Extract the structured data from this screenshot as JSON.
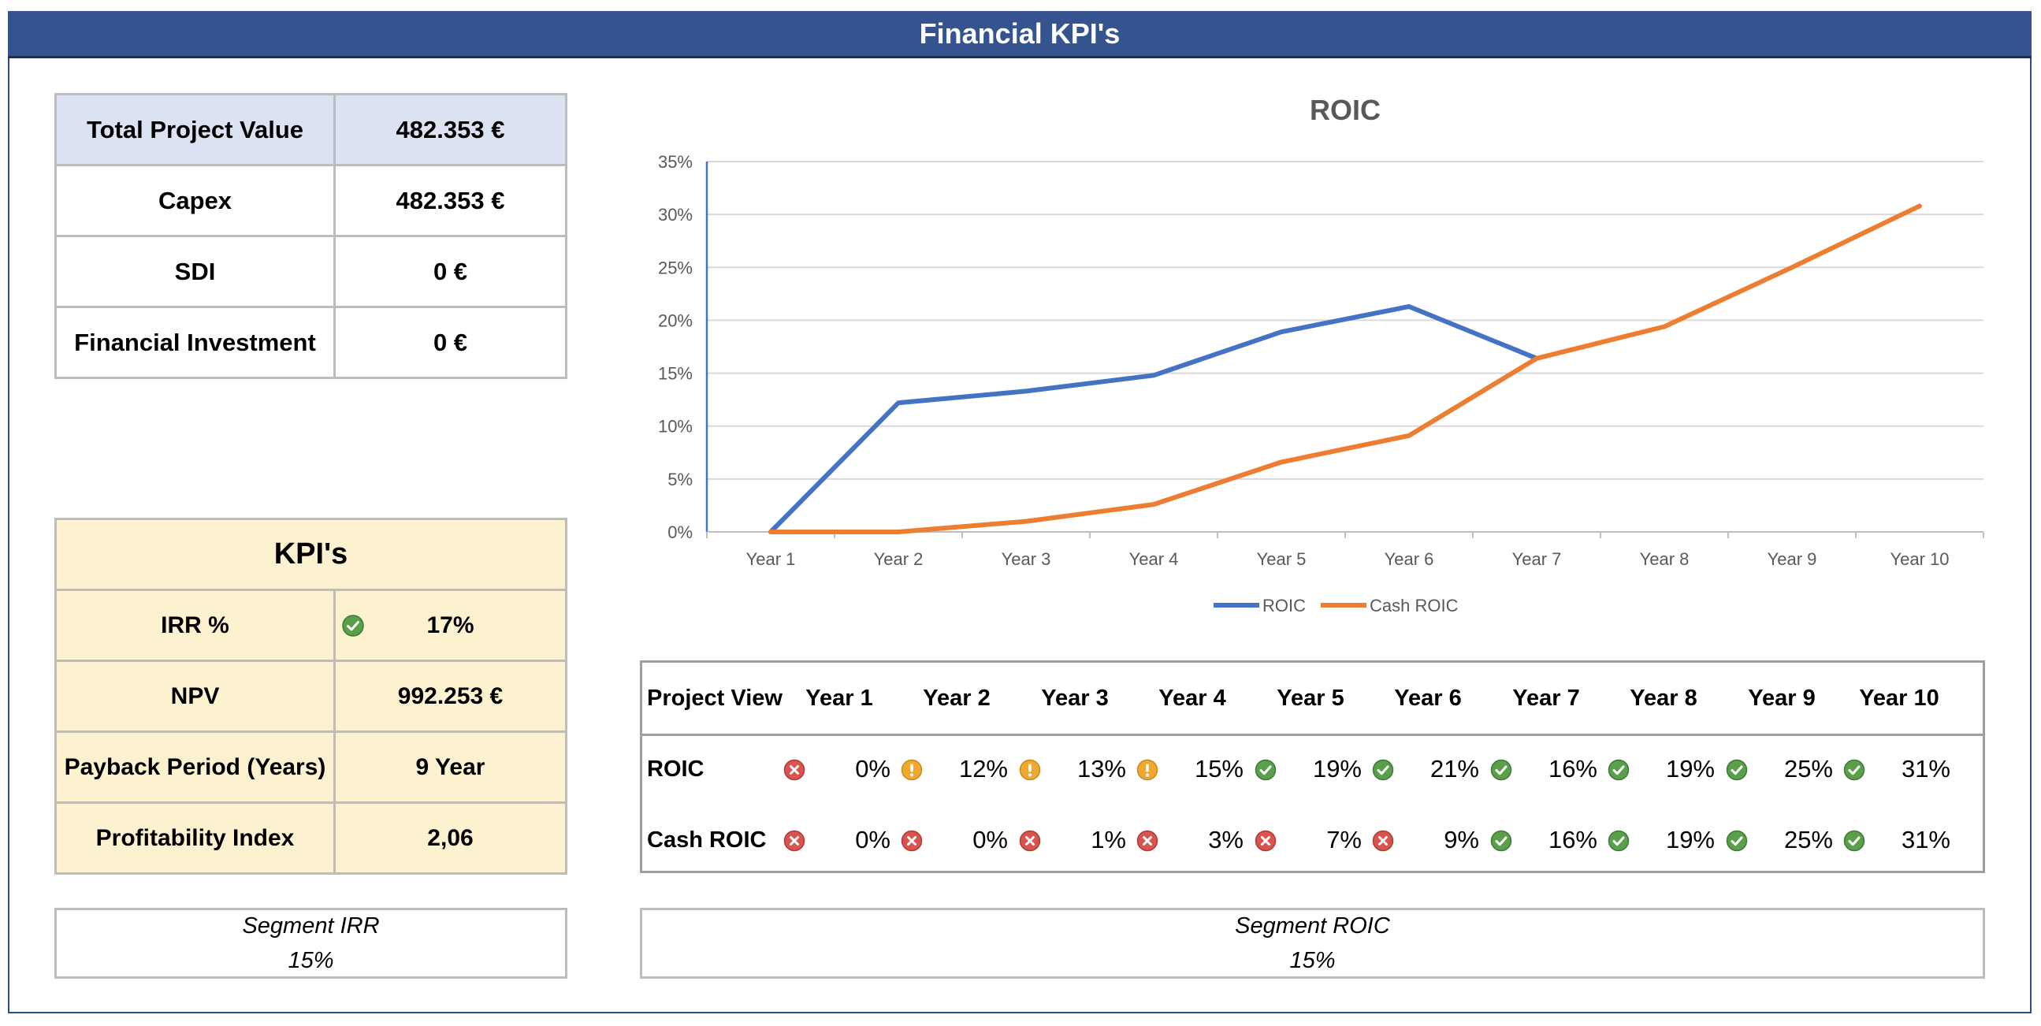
{
  "header": {
    "title": "Financial KPI's"
  },
  "summary": [
    {
      "label": "Total Project Value",
      "value": "482.353 €"
    },
    {
      "label": "Capex",
      "value": "482.353 €"
    },
    {
      "label": "SDI",
      "value": "0 €"
    },
    {
      "label": "Financial Investment",
      "value": "0 €"
    }
  ],
  "kpis": {
    "title": "KPI's",
    "rows": [
      {
        "label": "IRR %",
        "value": "17%",
        "status": "check-icon"
      },
      {
        "label": "NPV",
        "value": "992.253 €"
      },
      {
        "label": "Payback Period (Years)",
        "value": "9 Year"
      },
      {
        "label": "Profitability Index",
        "value": "2,06"
      }
    ]
  },
  "segment_irr": {
    "label": "Segment IRR",
    "value": "15%"
  },
  "segment_roic": {
    "label": "Segment ROIC",
    "value": "15%"
  },
  "chart_data": {
    "type": "line",
    "title": "ROIC",
    "categories": [
      "Year 1",
      "Year 2",
      "Year 3",
      "Year 4",
      "Year 5",
      "Year 6",
      "Year 7",
      "Year 8",
      "Year 9",
      "Year 10"
    ],
    "series": [
      {
        "name": "ROIC",
        "color": "#4472c4",
        "values": [
          0,
          12.2,
          13.3,
          14.8,
          18.9,
          21.3,
          16.4,
          null,
          null,
          null
        ]
      },
      {
        "name": "Cash ROIC",
        "color": "#ed7d31",
        "values": [
          0,
          0,
          1.0,
          2.6,
          6.6,
          9.1,
          16.4,
          19.4,
          25.0,
          30.8
        ]
      }
    ],
    "ylim": [
      0,
      35
    ],
    "yticks": [
      "0%",
      "5%",
      "10%",
      "15%",
      "20%",
      "25%",
      "30%",
      "35%"
    ],
    "grid": true,
    "legend": "bottom"
  },
  "project_view": {
    "header": "Project View",
    "years": [
      "Year 1",
      "Year 2",
      "Year 3",
      "Year 4",
      "Year 5",
      "Year 6",
      "Year 7",
      "Year 8",
      "Year 9",
      "Year 10"
    ],
    "rows": [
      {
        "label": "ROIC",
        "values": [
          "0%",
          "12%",
          "13%",
          "15%",
          "19%",
          "21%",
          "16%",
          "19%",
          "25%",
          "31%"
        ],
        "status": [
          "cross",
          "warn",
          "warn",
          "warn",
          "check",
          "check",
          "check",
          "check",
          "check",
          "check"
        ]
      },
      {
        "label": "Cash ROIC",
        "values": [
          "0%",
          "0%",
          "1%",
          "3%",
          "7%",
          "9%",
          "16%",
          "19%",
          "25%",
          "31%"
        ],
        "status": [
          "cross",
          "cross",
          "cross",
          "cross",
          "cross",
          "cross",
          "check",
          "check",
          "check",
          "check"
        ]
      }
    ]
  },
  "colors": {
    "header": "#34538f",
    "summary_highlight": "#dbe2f1",
    "kpi_bg": "#fdf2d0",
    "check": "#5a9f4a",
    "warn": "#f0a830",
    "cross": "#d9534f"
  }
}
